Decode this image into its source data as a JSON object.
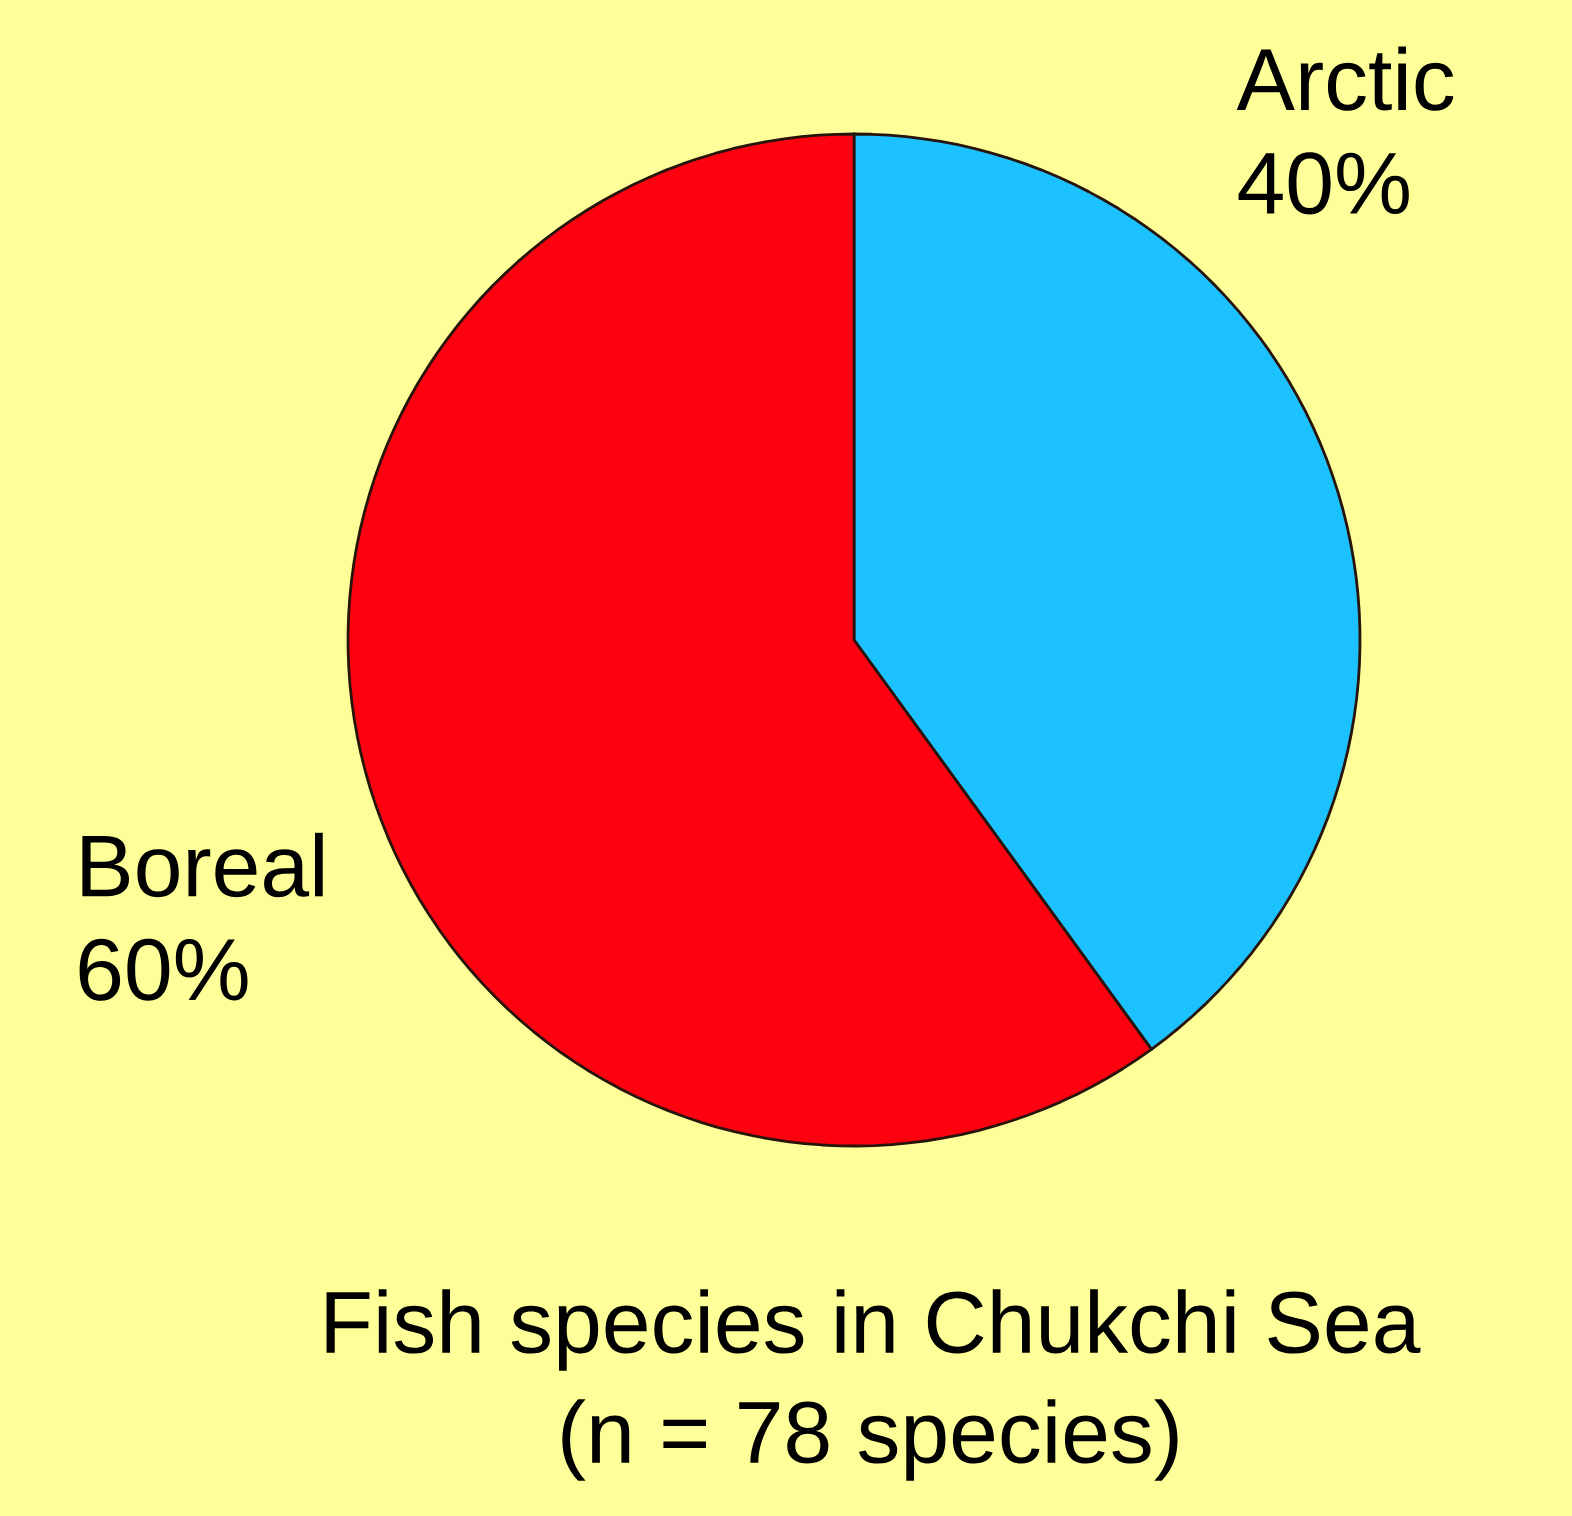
{
  "chart_data": {
    "type": "pie",
    "title": "Fish species in Chukchi Sea",
    "subtitle": "(n = 78 species)",
    "categories": [
      "Arctic",
      "Boreal"
    ],
    "values": [
      40,
      60
    ],
    "value_labels": [
      "40%",
      "60%"
    ],
    "colors": [
      "#1cc2ff",
      "#ff0010"
    ]
  }
}
